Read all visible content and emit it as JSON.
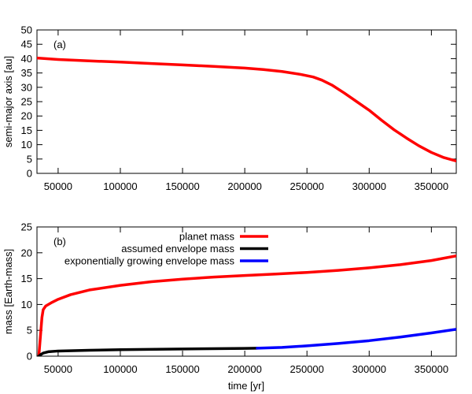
{
  "chart_data": [
    {
      "type": "line",
      "panel_label": "(a)",
      "xlabel": "",
      "ylabel": "semi-major axis [au]",
      "xlim": [
        33000,
        370000
      ],
      "ylim": [
        0,
        50
      ],
      "xticks": [
        50000,
        100000,
        150000,
        200000,
        250000,
        300000,
        350000
      ],
      "yticks": [
        0,
        5,
        10,
        15,
        20,
        25,
        30,
        35,
        40,
        45,
        50
      ],
      "grid": false,
      "series": [
        {
          "name": "",
          "color": "#ff0000",
          "points": [
            [
              33000,
              40.2
            ],
            [
              50000,
              39.7
            ],
            [
              75000,
              39.2
            ],
            [
              100000,
              38.8
            ],
            [
              125000,
              38.3
            ],
            [
              150000,
              37.8
            ],
            [
              175000,
              37.3
            ],
            [
              200000,
              36.7
            ],
            [
              215000,
              36.2
            ],
            [
              230000,
              35.5
            ],
            [
              245000,
              34.5
            ],
            [
              255000,
              33.6
            ],
            [
              262000,
              32.5
            ],
            [
              270000,
              30.8
            ],
            [
              280000,
              28.0
            ],
            [
              290000,
              25.0
            ],
            [
              300000,
              22.0
            ],
            [
              310000,
              18.5
            ],
            [
              320000,
              15.2
            ],
            [
              330000,
              12.3
            ],
            [
              340000,
              9.6
            ],
            [
              350000,
              7.3
            ],
            [
              360000,
              5.5
            ],
            [
              370000,
              4.3
            ]
          ]
        }
      ]
    },
    {
      "type": "line",
      "panel_label": "(b)",
      "xlabel": "time [yr]",
      "ylabel": "mass [Earth-mass]",
      "xlim": [
        33000,
        370000
      ],
      "ylim": [
        0,
        25
      ],
      "xticks": [
        50000,
        100000,
        150000,
        200000,
        250000,
        300000,
        350000
      ],
      "yticks": [
        0,
        5,
        10,
        15,
        20,
        25
      ],
      "grid": false,
      "legend_position": "top-center",
      "series": [
        {
          "name": "planet mass",
          "color": "#ff0000",
          "points": [
            [
              34500,
              0.0
            ],
            [
              36000,
              4.5
            ],
            [
              37000,
              7.5
            ],
            [
              38000,
              9.0
            ],
            [
              40000,
              9.7
            ],
            [
              45000,
              10.4
            ],
            [
              50000,
              11.0
            ],
            [
              60000,
              11.9
            ],
            [
              75000,
              12.8
            ],
            [
              100000,
              13.7
            ],
            [
              125000,
              14.4
            ],
            [
              150000,
              14.9
            ],
            [
              175000,
              15.3
            ],
            [
              200000,
              15.6
            ],
            [
              225000,
              15.9
            ],
            [
              250000,
              16.2
            ],
            [
              275000,
              16.6
            ],
            [
              300000,
              17.1
            ],
            [
              325000,
              17.7
            ],
            [
              350000,
              18.5
            ],
            [
              370000,
              19.4
            ]
          ]
        },
        {
          "name": "assumed envelope mass",
          "color": "#000000",
          "points": [
            [
              34500,
              0.0
            ],
            [
              36000,
              0.3
            ],
            [
              38000,
              0.6
            ],
            [
              42000,
              0.85
            ],
            [
              50000,
              1.0
            ],
            [
              75000,
              1.15
            ],
            [
              100000,
              1.25
            ],
            [
              150000,
              1.4
            ],
            [
              200000,
              1.5
            ],
            [
              210000,
              1.55
            ]
          ]
        },
        {
          "name": "exponentially growing envelope mass",
          "color": "#0000ff",
          "points": [
            [
              210000,
              1.55
            ],
            [
              230000,
              1.7
            ],
            [
              250000,
              2.0
            ],
            [
              275000,
              2.45
            ],
            [
              300000,
              3.0
            ],
            [
              325000,
              3.7
            ],
            [
              350000,
              4.5
            ],
            [
              370000,
              5.2
            ]
          ]
        }
      ]
    }
  ]
}
